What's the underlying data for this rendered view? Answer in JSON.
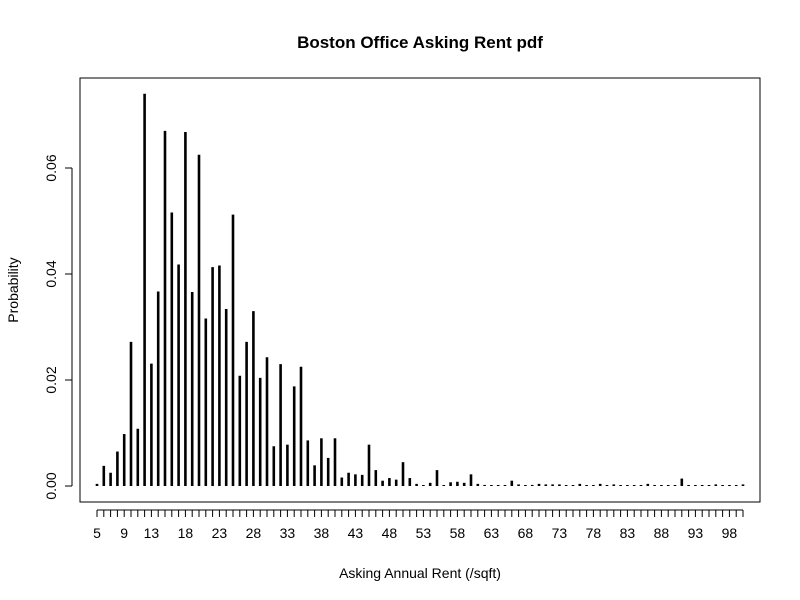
{
  "chart_data": {
    "type": "bar",
    "title": "Boston Office Asking Rent pdf",
    "xlabel": "Asking Annual Rent (/sqft)",
    "ylabel": "Probability",
    "ylim": [
      0,
      0.074
    ],
    "y_ticks": [
      "0.00",
      "0.02",
      "0.04",
      "0.06"
    ],
    "x_tick_labels": [
      "5",
      "9",
      "13",
      "18",
      "23",
      "28",
      "33",
      "38",
      "43",
      "48",
      "53",
      "58",
      "63",
      "68",
      "73",
      "78",
      "83",
      "88",
      "93",
      "98"
    ],
    "x": [
      5,
      6,
      7,
      8,
      9,
      10,
      11,
      12,
      13,
      14,
      15,
      16,
      17,
      18,
      19,
      20,
      21,
      22,
      23,
      24,
      25,
      26,
      27,
      28,
      29,
      30,
      31,
      32,
      33,
      34,
      35,
      36,
      37,
      38,
      39,
      40,
      41,
      42,
      43,
      44,
      45,
      46,
      47,
      48,
      49,
      50,
      51,
      52,
      53,
      54,
      55,
      56,
      57,
      58,
      59,
      60,
      61,
      62,
      63,
      64,
      65,
      66,
      67,
      68,
      69,
      70,
      71,
      72,
      73,
      74,
      75,
      76,
      77,
      78,
      79,
      80,
      81,
      82,
      83,
      84,
      85,
      86,
      87,
      88,
      89,
      90,
      91,
      92,
      93,
      94,
      95,
      96,
      97,
      98,
      99,
      100
    ],
    "values": [
      0.0004,
      0.0038,
      0.0025,
      0.0065,
      0.0098,
      0.0272,
      0.0108,
      0.074,
      0.0231,
      0.0367,
      0.067,
      0.0516,
      0.0418,
      0.0668,
      0.0366,
      0.0625,
      0.0316,
      0.0413,
      0.0416,
      0.0334,
      0.0512,
      0.0208,
      0.0272,
      0.033,
      0.0204,
      0.0243,
      0.0075,
      0.023,
      0.0078,
      0.0188,
      0.0225,
      0.0086,
      0.0039,
      0.009,
      0.0053,
      0.009,
      0.0016,
      0.0025,
      0.0022,
      0.0021,
      0.0078,
      0.003,
      0.001,
      0.0015,
      0.0012,
      0.0045,
      0.0015,
      0.0004,
      0.0001,
      0.0006,
      0.003,
      0.0001,
      0.0007,
      0.0008,
      0.0006,
      0.0022,
      0.0004,
      0.0002,
      0.0001,
      0.0001,
      0.0001,
      0.001,
      0.0003,
      0.0001,
      0.0002,
      0.0004,
      0.0003,
      0.0003,
      0.0003,
      0.0001,
      0.0001,
      0.0004,
      0.0001,
      0.0001,
      0.0004,
      0.0001,
      0.0003,
      0.0001,
      0.0001,
      0.0001,
      0.0001,
      0.0004,
      0.0001,
      0.0001,
      0.0001,
      0.0001,
      0.0014,
      0.0001,
      0.0001,
      0.0001,
      0.0001,
      0.0003,
      0.0001,
      0.0001,
      0.0001,
      0.0003
    ],
    "xlim": [
      2.5,
      102.5
    ],
    "grid": false,
    "legend": "none"
  }
}
